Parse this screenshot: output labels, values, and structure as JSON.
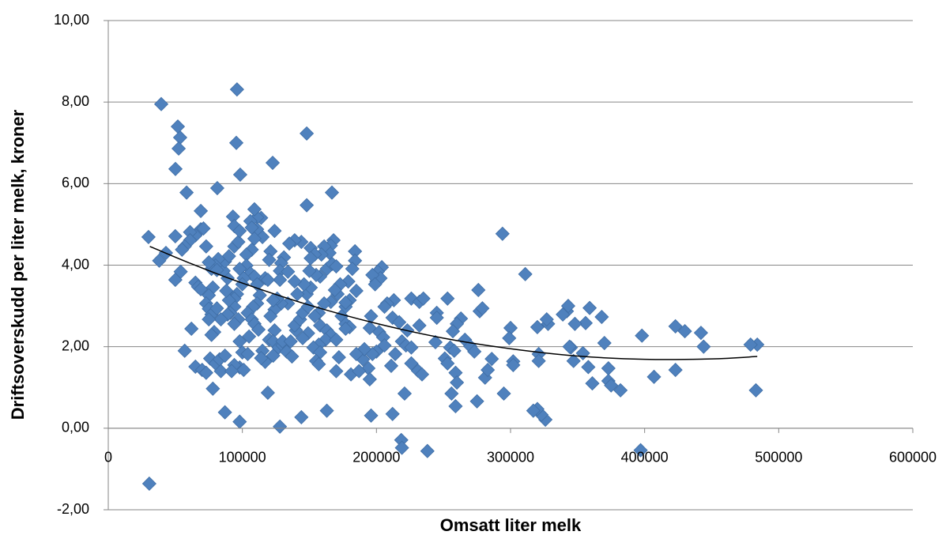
{
  "chart_data": {
    "type": "scatter",
    "x_label": "Omsatt liter melk",
    "y_label": "Driftsoverskudd per liter melk, kroner",
    "color": "#4f81bd",
    "grid": true,
    "xlim": [
      0,
      600000
    ],
    "xticks": [
      0,
      100000,
      200000,
      300000,
      400000,
      500000,
      600000
    ],
    "ylim": [
      -2,
      10
    ],
    "yticks": [
      {
        "value": -2,
        "label": "-2,00"
      },
      {
        "value": 0,
        "label": "0,00"
      },
      {
        "value": 2,
        "label": "2,00"
      },
      {
        "value": 4,
        "label": "4,00"
      },
      {
        "value": 6,
        "label": "6,00"
      },
      {
        "value": 8,
        "label": "8,00"
      },
      {
        "value": 10,
        "label": "10,00"
      }
    ],
    "x": [
      30600,
      39500,
      51900,
      53600,
      52500,
      50100,
      58400,
      96000,
      95500,
      148000,
      122600,
      98400,
      81300,
      166800,
      148000,
      30000,
      294000,
      311000,
      276000,
      484000,
      479000,
      483000,
      397000,
      238000,
      218500,
      219000,
      398000,
      407000,
      423000,
      423000,
      430000,
      442000,
      444000,
      326000,
      323000,
      320000,
      317000,
      128000,
      98000,
      87000,
      144000,
      163000,
      196000,
      212000,
      259000,
      275000,
      295000,
      256000,
      119000,
      221000,
      78000,
      342000,
      343000,
      359000,
      368000,
      370000,
      356000,
      348000,
      345000,
      347000,
      354000,
      358000,
      361000,
      373000,
      373000,
      375000,
      382000,
      344000,
      339000,
      300000,
      299000,
      302000,
      302000,
      286000,
      281000,
      283000,
      277000,
      279000,
      328000,
      327000,
      320000,
      321000,
      321000,
      263000,
      260000,
      257000,
      255000,
      258000,
      266000,
      270000,
      273000,
      253000,
      245000,
      245000,
      244000,
      251000,
      253000,
      259000,
      260000,
      226000,
      232000,
      235000,
      213000,
      208000,
      206000,
      212000,
      217000,
      223000,
      219000,
      222000,
      226000,
      226000,
      231000,
      234000,
      232000,
      214000,
      211000,
      204000,
      201000,
      200000,
      203000,
      197000,
      199000,
      196000,
      195000,
      202000,
      205000,
      206000,
      200000,
      197000,
      194000,
      195000,
      185000,
      184000,
      184000,
      182000,
      179000,
      180000,
      177000,
      174000,
      177000,
      180000,
      177000,
      177000,
      181000,
      187000,
      190000,
      191000,
      185000,
      168000,
      166000,
      165000,
      161000,
      159000,
      158000,
      155000,
      163000,
      167000,
      170000,
      173000,
      171000,
      169000,
      166000,
      161000,
      157000,
      154000,
      158000,
      163000,
      166000,
      162000,
      157000,
      153000,
      158000,
      155000,
      157000,
      170000,
      172000,
      170000,
      149000,
      145000,
      140000,
      139000,
      143000,
      145000,
      149000,
      148000,
      151000,
      146000,
      151000,
      154000,
      151000,
      150000,
      144000,
      139000,
      135000,
      131000,
      129000,
      128000,
      128000,
      134000,
      139000,
      141000,
      134000,
      129000,
      124000,
      126000,
      123000,
      121000,
      124000,
      120000,
      123000,
      127000,
      130000,
      133000,
      137000,
      123000,
      117000,
      115000,
      114000,
      130000,
      136000,
      124000,
      121000,
      120000,
      117000,
      119000,
      115000,
      114000,
      111000,
      109000,
      111000,
      106000,
      107000,
      109000,
      107000,
      103000,
      103000,
      106000,
      109000,
      111000,
      113000,
      111000,
      108000,
      104000,
      107000,
      109000,
      112000,
      105000,
      98000,
      100000,
      98000,
      101000,
      94000,
      96000,
      94000,
      94000,
      97000,
      94000,
      91000,
      89000,
      90000,
      88000,
      89000,
      86000,
      87000,
      90000,
      94000,
      97000,
      93000,
      94000,
      98000,
      98000,
      101000,
      100000,
      82000,
      80000,
      77000,
      75000,
      81000,
      78000,
      75000,
      73000,
      75000,
      77000,
      81000,
      84000,
      75000,
      79000,
      77000,
      76000,
      80000,
      83000,
      84000,
      65000,
      70000,
      62000,
      65000,
      67000,
      69000,
      69000,
      69000,
      71000,
      73000,
      65000,
      61000,
      61000,
      57000,
      55000,
      50000,
      54000,
      50000,
      57000,
      43000,
      38000,
      73000,
      87000,
      92000,
      104000
    ],
    "values": [
      -1.36,
      7.95,
      7.4,
      7.13,
      6.86,
      6.36,
      5.78,
      8.31,
      7.0,
      7.23,
      6.51,
      6.22,
      5.89,
      5.78,
      5.47,
      4.69,
      4.77,
      3.78,
      3.39,
      2.05,
      2.05,
      0.93,
      -0.54,
      -0.56,
      -0.29,
      -0.48,
      2.27,
      1.26,
      1.43,
      2.5,
      2.38,
      2.34,
      2.0,
      0.21,
      0.33,
      0.47,
      0.43,
      0.04,
      0.16,
      0.39,
      0.27,
      0.43,
      0.31,
      0.35,
      0.54,
      0.66,
      0.85,
      0.85,
      0.87,
      0.85,
      0.97,
      2.87,
      3.0,
      2.95,
      2.73,
      2.09,
      2.58,
      2.56,
      1.98,
      1.65,
      1.84,
      1.5,
      1.1,
      1.47,
      1.16,
      1.05,
      0.93,
      2.0,
      2.79,
      2.46,
      2.21,
      1.64,
      1.55,
      1.7,
      1.24,
      1.43,
      2.87,
      2.94,
      2.56,
      2.67,
      2.48,
      1.82,
      1.65,
      2.69,
      2.56,
      2.38,
      1.98,
      1.9,
      2.17,
      2.01,
      1.88,
      3.18,
      2.83,
      2.71,
      2.11,
      1.71,
      1.59,
      1.36,
      1.12,
      3.18,
      3.1,
      3.18,
      3.14,
      3.06,
      2.98,
      2.71,
      2.6,
      2.4,
      2.13,
      2.03,
      1.98,
      1.59,
      1.41,
      1.32,
      2.52,
      1.82,
      1.53,
      3.95,
      3.84,
      3.6,
      3.68,
      3.76,
      3.53,
      2.75,
      2.46,
      2.36,
      2.23,
      2.03,
      1.88,
      1.82,
      1.47,
      1.2,
      3.37,
      4.34,
      4.11,
      3.91,
      3.6,
      3.14,
      2.98,
      2.75,
      2.56,
      2.48,
      2.44,
      3.08,
      1.32,
      1.4,
      1.69,
      1.94,
      1.82,
      4.61,
      4.48,
      4.3,
      4.46,
      4.26,
      3.72,
      3.76,
      3.91,
      4.03,
      3.97,
      3.53,
      3.29,
      3.39,
      3.1,
      3.06,
      2.83,
      2.75,
      2.52,
      2.4,
      2.29,
      2.17,
      2.05,
      1.98,
      1.86,
      1.65,
      1.57,
      1.4,
      1.74,
      2.17,
      2.33,
      2.21,
      2.4,
      2.52,
      2.67,
      2.83,
      2.98,
      3.29,
      3.45,
      3.53,
      4.42,
      4.26,
      4.17,
      3.86,
      4.57,
      4.61,
      4.53,
      4.19,
      4.05,
      3.86,
      3.64,
      3.84,
      3.6,
      3.29,
      3.06,
      3.06,
      2.91,
      3.18,
      3.14,
      2.75,
      2.4,
      2.17,
      2.13,
      1.98,
      2.03,
      1.88,
      1.76,
      1.78,
      1.63,
      1.9,
      1.72,
      2.13,
      2.13,
      4.84,
      4.34,
      4.13,
      3.68,
      3.64,
      4.69,
      5.16,
      5.17,
      5.37,
      4.88,
      5.08,
      4.92,
      4.65,
      4.38,
      4.26,
      3.99,
      3.8,
      3.72,
      3.53,
      3.26,
      3.06,
      2.98,
      2.83,
      2.67,
      2.56,
      2.42,
      2.25,
      2.13,
      1.86,
      1.49,
      1.43,
      1.55,
      3.29,
      3.18,
      2.98,
      2.67,
      2.56,
      2.83,
      2.79,
      3.14,
      3.37,
      3.68,
      3.86,
      4.09,
      4.22,
      4.46,
      4.57,
      5.19,
      4.96,
      4.84,
      3.91,
      3.68,
      3.53,
      4.15,
      3.99,
      3.91,
      4.07,
      3.88,
      3.45,
      3.26,
      3.06,
      2.93,
      2.79,
      2.94,
      2.67,
      2.67,
      2.36,
      2.29,
      1.71,
      1.59,
      1.69,
      1.4,
      1.51,
      1.43,
      2.44,
      3.57,
      3.47,
      3.41,
      5.33,
      4.88,
      4.9,
      4.46,
      4.73,
      4.81,
      4.61,
      4.46,
      4.38,
      4.71,
      3.84,
      3.64,
      1.9,
      4.3,
      4.11,
      1.36,
      1.78,
      1.4,
      1.82
    ],
    "trendline": {
      "color": "#000000",
      "x": [
        31000,
        60000,
        100000,
        150000,
        200000,
        250000,
        300000,
        350000,
        400000,
        450000,
        484000
      ],
      "values": [
        4.46,
        4.06,
        3.56,
        3.02,
        2.57,
        2.21,
        1.95,
        1.77,
        1.69,
        1.7,
        1.76
      ]
    }
  }
}
